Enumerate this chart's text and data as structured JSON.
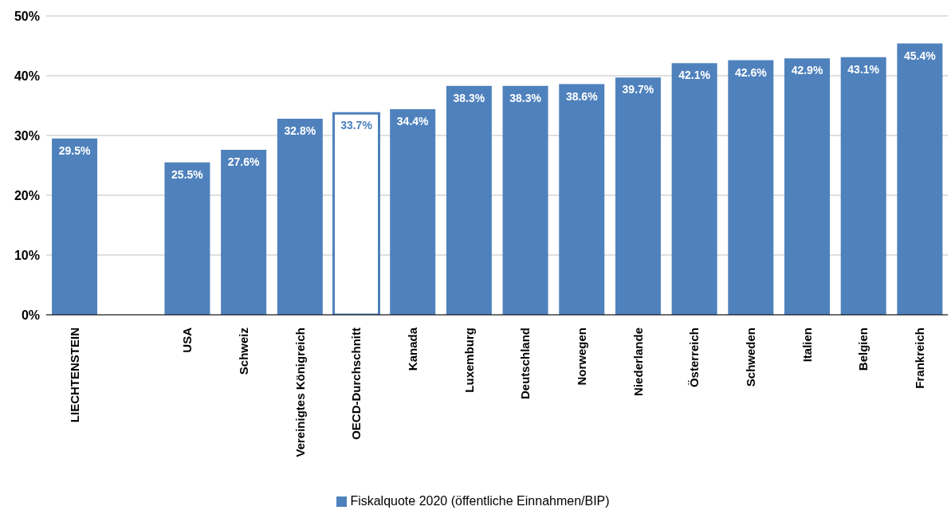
{
  "chart_data": {
    "type": "bar",
    "categories": [
      "LIECHTENSTEIN",
      null,
      "USA",
      "Schweiz",
      "Vereinigtes Königreich",
      "OECD-Durchschnitt",
      "Kanada",
      "Luxemburg",
      "Deutschland",
      "Norwegen",
      "Niederlande",
      "Österreich",
      "Schweden",
      "Italien",
      "Belgien",
      "Frankreich"
    ],
    "series": [
      {
        "name": "Fiskalquote 2020 (öffentliche Einnahmen/BIP)",
        "color": "#4f81bd",
        "colors": [
          "#4f81bd",
          null,
          "#4f81bd",
          "#4f81bd",
          "#4f81bd",
          "#ffffff",
          "#4f81bd",
          "#4f81bd",
          "#4f81bd",
          "#4f81bd",
          "#4f81bd",
          "#4f81bd",
          "#4f81bd",
          "#4f81bd",
          "#4f81bd",
          "#4f81bd"
        ],
        "values": [
          29.5,
          null,
          25.5,
          27.6,
          32.8,
          33.7,
          34.4,
          38.3,
          38.3,
          38.6,
          39.7,
          42.1,
          42.6,
          42.9,
          43.1,
          45.4
        ],
        "value_labels": [
          "29.5%",
          null,
          "25.5%",
          "27.6%",
          "32.8%",
          "33.7%",
          "34.4%",
          "38.3%",
          "38.3%",
          "38.6%",
          "39.7%",
          "42.1%",
          "42.6%",
          "42.9%",
          "43.1%",
          "45.4%"
        ]
      }
    ],
    "ylim": [
      0,
      50
    ],
    "yticks": [
      {
        "value": 0,
        "label": "0%"
      },
      {
        "value": 10,
        "label": "10%"
      },
      {
        "value": 20,
        "label": "20%"
      },
      {
        "value": 30,
        "label": "30%"
      },
      {
        "value": 40,
        "label": "40%"
      },
      {
        "value": 50,
        "label": "50%"
      }
    ],
    "grid": "y",
    "legend": "bottom"
  }
}
